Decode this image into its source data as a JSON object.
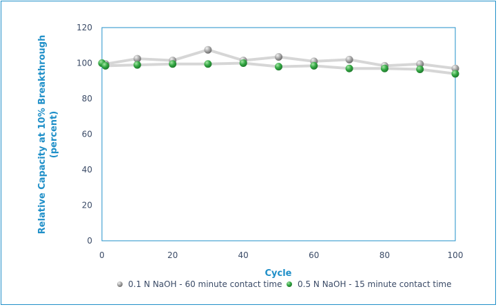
{
  "chart_data": {
    "type": "line",
    "xlabel": "Cycle",
    "ylabel_line1": "Relative Capacity at 10% Breakthrough",
    "ylabel_line2": "(percent)",
    "xlim": [
      0,
      100
    ],
    "ylim": [
      0,
      120
    ],
    "xticks": [
      "0",
      "20",
      "40",
      "60",
      "80",
      "100"
    ],
    "yticks": [
      "0",
      "20",
      "40",
      "60",
      "80",
      "100",
      "120"
    ],
    "legend_position": "bottom",
    "series": [
      {
        "name": "0.1 N NaOH - 60 minute contact time",
        "color": "#9a9a9a",
        "x": [
          0,
          1,
          10,
          20,
          30,
          40,
          50,
          60,
          70,
          80,
          90,
          100
        ],
        "y": [
          100,
          99.5,
          102.5,
          101.5,
          107.5,
          101.5,
          103.5,
          101,
          102,
          98.5,
          99.5,
          97
        ]
      },
      {
        "name": "0.5 N NaOH - 15 minute contact time",
        "color": "#2e9e3e",
        "x": [
          0,
          1,
          10,
          20,
          30,
          40,
          50,
          60,
          70,
          80,
          90,
          100
        ],
        "y": [
          100,
          98.5,
          99,
          99.5,
          99.5,
          100,
          98,
          98.5,
          97,
          97,
          96.5,
          94
        ]
      }
    ]
  }
}
